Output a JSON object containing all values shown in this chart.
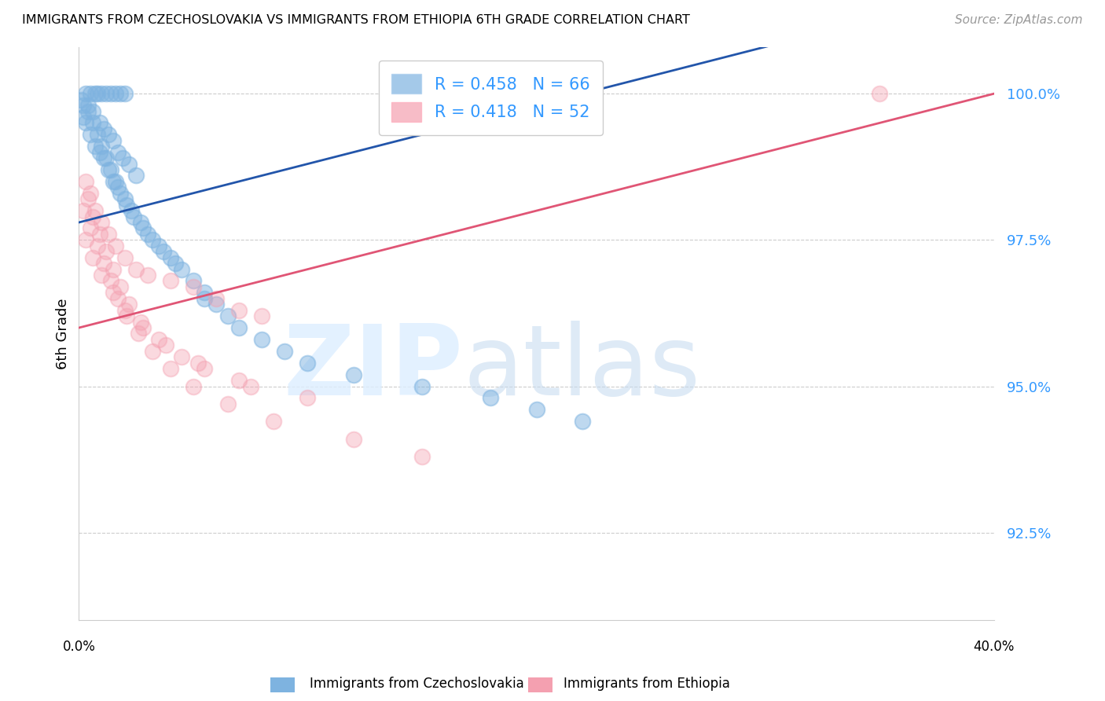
{
  "title": "IMMIGRANTS FROM CZECHOSLOVAKIA VS IMMIGRANTS FROM ETHIOPIA 6TH GRADE CORRELATION CHART",
  "source": "Source: ZipAtlas.com",
  "ylabel": "6th Grade",
  "xmin": 0.0,
  "xmax": 40.0,
  "ymin": 91.0,
  "ymax": 100.8,
  "blue_R": 0.458,
  "blue_N": 66,
  "pink_R": 0.418,
  "pink_N": 52,
  "blue_color": "#7EB3E0",
  "pink_color": "#F4A0B0",
  "blue_line_color": "#2255AA",
  "pink_line_color": "#E05575",
  "legend_label_blue": "Immigrants from Czechoslovakia",
  "legend_label_pink": "Immigrants from Ethiopia",
  "ytick_values": [
    92.5,
    95.0,
    97.5,
    100.0
  ],
  "ytick_labels": [
    "92.5%",
    "95.0%",
    "97.5%",
    "100.0%"
  ],
  "blue_x": [
    0.3,
    0.5,
    0.7,
    0.8,
    1.0,
    1.2,
    1.4,
    1.6,
    1.8,
    2.0,
    0.4,
    0.6,
    0.9,
    1.1,
    1.3,
    1.5,
    1.7,
    1.9,
    2.2,
    2.5,
    0.2,
    0.3,
    0.5,
    0.7,
    0.9,
    1.1,
    1.3,
    1.5,
    1.7,
    2.0,
    2.3,
    2.7,
    3.0,
    3.5,
    4.0,
    4.5,
    5.0,
    5.5,
    6.0,
    0.1,
    0.2,
    0.4,
    0.6,
    0.8,
    1.0,
    1.2,
    1.4,
    1.6,
    1.8,
    2.1,
    2.4,
    2.8,
    3.2,
    3.7,
    4.2,
    5.5,
    6.5,
    7.0,
    8.0,
    9.0,
    10.0,
    12.0,
    15.0,
    18.0,
    20.0,
    22.0
  ],
  "blue_y": [
    100.0,
    100.0,
    100.0,
    100.0,
    100.0,
    100.0,
    100.0,
    100.0,
    100.0,
    100.0,
    99.8,
    99.7,
    99.5,
    99.4,
    99.3,
    99.2,
    99.0,
    98.9,
    98.8,
    98.6,
    99.6,
    99.5,
    99.3,
    99.1,
    99.0,
    98.9,
    98.7,
    98.5,
    98.4,
    98.2,
    98.0,
    97.8,
    97.6,
    97.4,
    97.2,
    97.0,
    96.8,
    96.6,
    96.4,
    99.9,
    99.8,
    99.7,
    99.5,
    99.3,
    99.1,
    98.9,
    98.7,
    98.5,
    98.3,
    98.1,
    97.9,
    97.7,
    97.5,
    97.3,
    97.1,
    96.5,
    96.2,
    96.0,
    95.8,
    95.6,
    95.4,
    95.2,
    95.0,
    94.8,
    94.6,
    94.4
  ],
  "pink_x": [
    0.3,
    0.5,
    0.7,
    1.0,
    1.3,
    1.6,
    2.0,
    2.5,
    3.0,
    4.0,
    5.0,
    6.0,
    7.0,
    8.0,
    0.4,
    0.6,
    0.9,
    1.2,
    1.5,
    1.8,
    2.2,
    2.7,
    3.5,
    4.5,
    5.5,
    7.5,
    10.0,
    0.2,
    0.5,
    0.8,
    1.1,
    1.4,
    1.7,
    2.1,
    2.6,
    3.2,
    4.0,
    5.0,
    6.5,
    8.5,
    12.0,
    15.0,
    0.3,
    0.6,
    1.0,
    1.5,
    2.0,
    2.8,
    3.8,
    5.2,
    7.0,
    35.0
  ],
  "pink_y": [
    98.5,
    98.3,
    98.0,
    97.8,
    97.6,
    97.4,
    97.2,
    97.0,
    96.9,
    96.8,
    96.7,
    96.5,
    96.3,
    96.2,
    98.2,
    97.9,
    97.6,
    97.3,
    97.0,
    96.7,
    96.4,
    96.1,
    95.8,
    95.5,
    95.3,
    95.0,
    94.8,
    98.0,
    97.7,
    97.4,
    97.1,
    96.8,
    96.5,
    96.2,
    95.9,
    95.6,
    95.3,
    95.0,
    94.7,
    94.4,
    94.1,
    93.8,
    97.5,
    97.2,
    96.9,
    96.6,
    96.3,
    96.0,
    95.7,
    95.4,
    95.1,
    100.0
  ]
}
